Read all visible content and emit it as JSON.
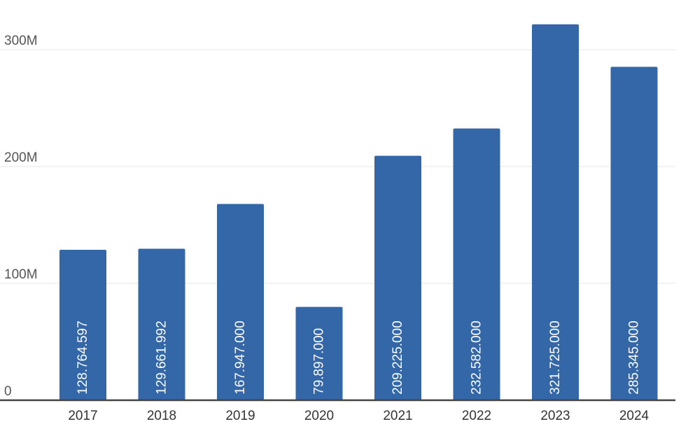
{
  "chart_data": {
    "type": "bar",
    "title": "",
    "xlabel": "",
    "ylabel": "",
    "categories": [
      "2017",
      "2018",
      "2019",
      "2020",
      "2021",
      "2022",
      "2023",
      "2024"
    ],
    "values": [
      128764597,
      129661992,
      167947000,
      79897000,
      209225000,
      232582000,
      321725000,
      285345000
    ],
    "value_labels": [
      "128.764.597",
      "129.661.992",
      "167.947.000",
      "79.897.000",
      "209.225.000",
      "232.582.000",
      "321.725.000",
      "285.345.000"
    ],
    "ylim": [
      0,
      330000000
    ],
    "y_ticks": [
      {
        "value": 0,
        "label": "0"
      },
      {
        "value": 100000000,
        "label": "100M"
      },
      {
        "value": 200000000,
        "label": "200M"
      },
      {
        "value": 300000000,
        "label": "300M"
      }
    ],
    "grid": true,
    "legend": "none",
    "colors": {
      "bar": "#3367a8",
      "grid": "#e6e6e6",
      "baseline": "#444444",
      "bar_label": "#ffffff"
    }
  }
}
